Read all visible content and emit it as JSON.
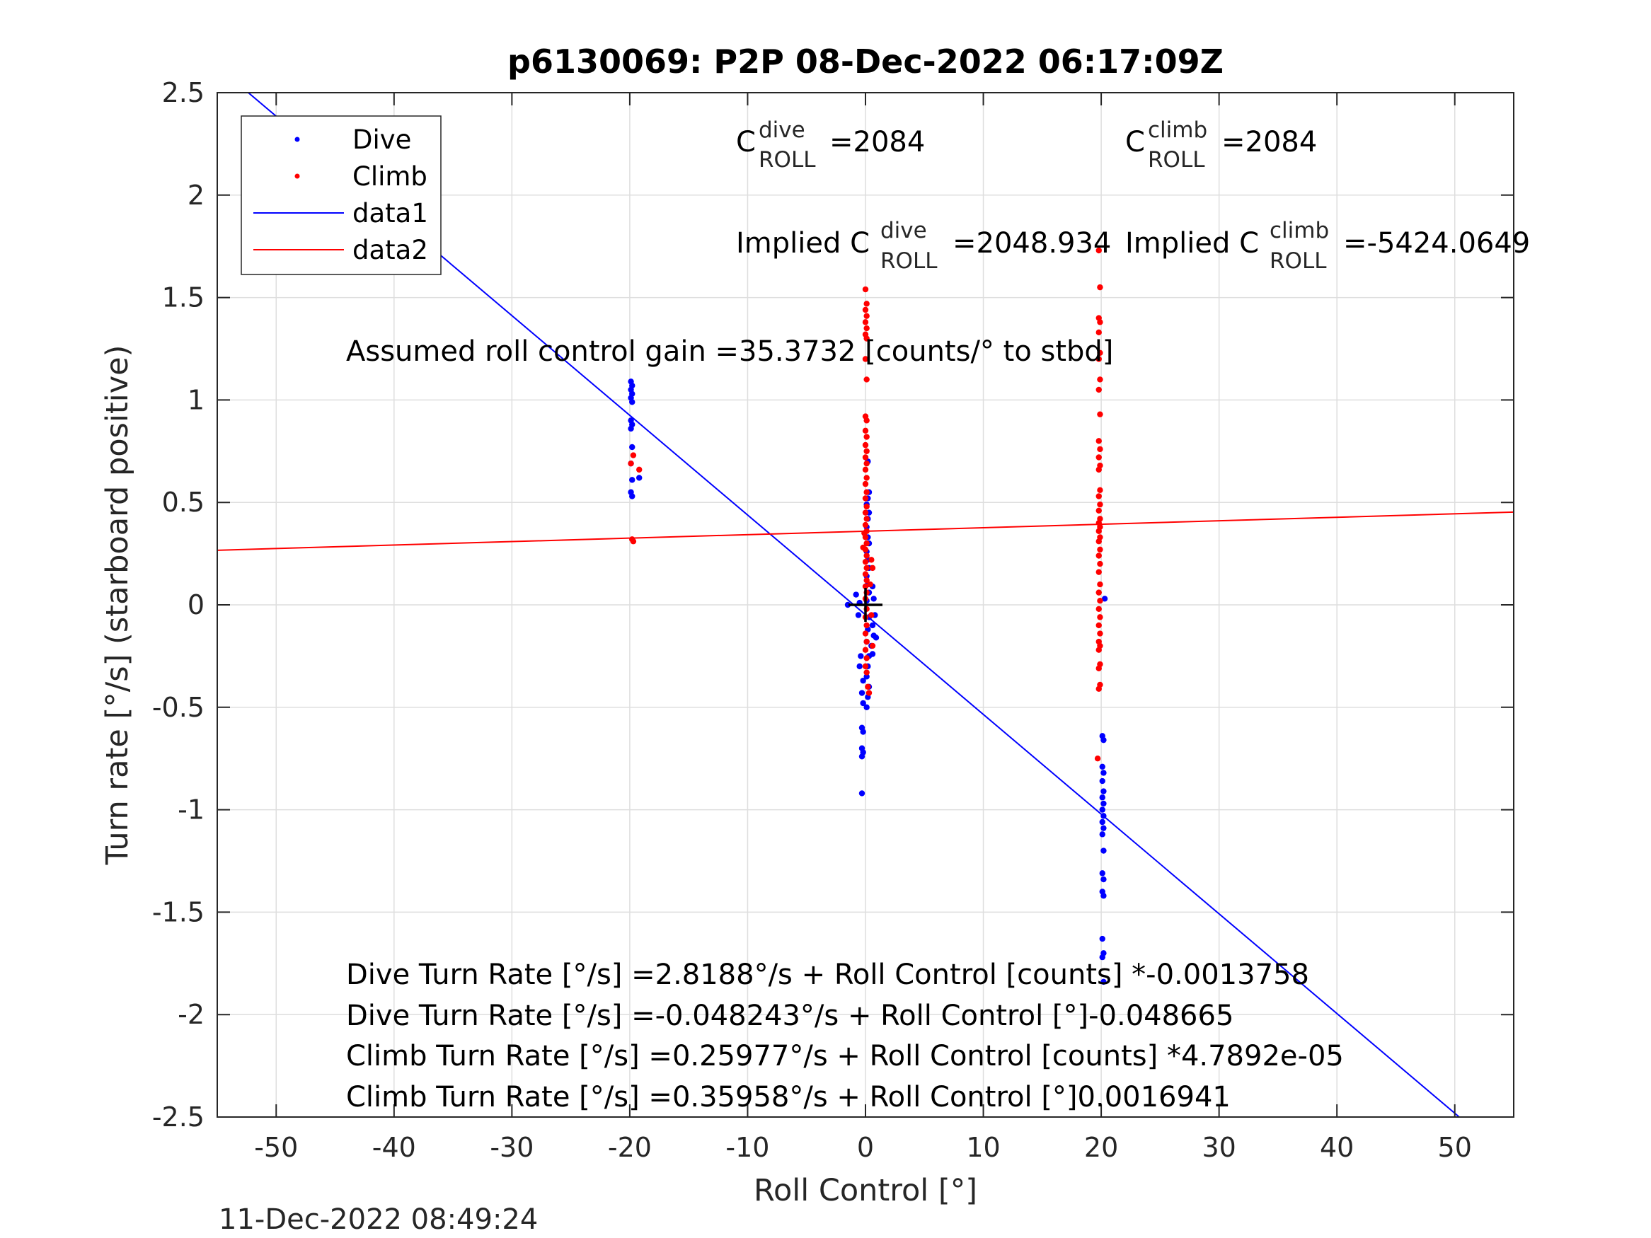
{
  "chart_data": {
    "type": "scatter",
    "title": "p6130069: P2P 08-Dec-2022 06:17:09Z",
    "xlabel": "Roll Control [°]",
    "ylabel": "Turn rate [°/s] (starboard positive)",
    "xlim": [
      -55,
      55
    ],
    "ylim": [
      -2.5,
      2.5
    ],
    "xticks": [
      -50,
      -40,
      -30,
      -20,
      -10,
      0,
      10,
      20,
      30,
      40,
      50
    ],
    "yticks": [
      -2.5,
      -2,
      -1.5,
      -1,
      -0.5,
      0,
      0.5,
      1,
      1.5,
      2,
      2.5
    ],
    "grid": true,
    "legend_position": "top-left",
    "series": [
      {
        "name": "Dive",
        "kind": "scatter",
        "color": "#0000ff",
        "points": [
          [
            -19.9,
            1.09
          ],
          [
            -19.8,
            1.07
          ],
          [
            -19.9,
            1.05
          ],
          [
            -19.8,
            1.03
          ],
          [
            -19.9,
            1.01
          ],
          [
            -19.8,
            0.99
          ],
          [
            -19.9,
            0.9
          ],
          [
            -19.8,
            0.88
          ],
          [
            -19.9,
            0.86
          ],
          [
            -19.8,
            0.77
          ],
          [
            -19.9,
            0.69
          ],
          [
            -19.8,
            0.61
          ],
          [
            -19.9,
            0.55
          ],
          [
            -19.8,
            0.53
          ],
          [
            -19.2,
            0.62
          ],
          [
            -1.5,
            0.0
          ],
          [
            -0.5,
            0.01
          ],
          [
            0.2,
            0.7
          ],
          [
            0.3,
            0.55
          ],
          [
            0.2,
            0.52
          ],
          [
            0.1,
            0.49
          ],
          [
            0.3,
            0.45
          ],
          [
            0.2,
            0.42
          ],
          [
            0.1,
            0.38
          ],
          [
            0.2,
            0.33
          ],
          [
            0.3,
            0.3
          ],
          [
            0.1,
            0.26
          ],
          [
            0.2,
            0.22
          ],
          [
            0.3,
            0.18
          ],
          [
            0.1,
            0.14
          ],
          [
            0.2,
            0.1
          ],
          [
            0.3,
            0.06
          ],
          [
            0.1,
            0.02
          ],
          [
            0.6,
            0.09
          ],
          [
            0.7,
            0.03
          ],
          [
            0.8,
            -0.05
          ],
          [
            0.6,
            -0.1
          ],
          [
            0.7,
            -0.15
          ],
          [
            0.5,
            -0.2
          ],
          [
            0.6,
            -0.24
          ],
          [
            0.9,
            -0.16
          ],
          [
            0.3,
            -0.06
          ],
          [
            0.2,
            -0.12
          ],
          [
            0.1,
            -0.18
          ],
          [
            0.3,
            -0.25
          ],
          [
            0.2,
            -0.3
          ],
          [
            0.1,
            -0.35
          ],
          [
            0.3,
            -0.4
          ],
          [
            0.2,
            -0.45
          ],
          [
            0.1,
            -0.5
          ],
          [
            -0.2,
            -0.37
          ],
          [
            -0.3,
            -0.43
          ],
          [
            -0.2,
            -0.48
          ],
          [
            -0.3,
            -0.6
          ],
          [
            -0.2,
            -0.62
          ],
          [
            -0.3,
            -0.7
          ],
          [
            -0.2,
            -0.72
          ],
          [
            -0.3,
            -0.74
          ],
          [
            -0.3,
            -0.92
          ],
          [
            -0.6,
            -0.05
          ],
          [
            -0.8,
            0.05
          ],
          [
            -0.4,
            -0.25
          ],
          [
            -0.5,
            -0.3
          ],
          [
            20.1,
            -0.64
          ],
          [
            20.2,
            -0.66
          ],
          [
            20.1,
            -0.79
          ],
          [
            20.2,
            -0.82
          ],
          [
            20.1,
            -0.86
          ],
          [
            20.2,
            -0.91
          ],
          [
            20.1,
            -0.94
          ],
          [
            20.2,
            -0.97
          ],
          [
            20.1,
            -1.0
          ],
          [
            20.2,
            -1.03
          ],
          [
            20.1,
            -1.06
          ],
          [
            20.2,
            -1.09
          ],
          [
            20.1,
            -1.12
          ],
          [
            20.2,
            -1.2
          ],
          [
            20.1,
            -1.31
          ],
          [
            20.2,
            -1.34
          ],
          [
            20.1,
            -1.4
          ],
          [
            20.2,
            -1.42
          ],
          [
            20.1,
            -1.63
          ],
          [
            20.2,
            -1.7
          ],
          [
            20.1,
            -1.72
          ],
          [
            20.2,
            -1.84
          ],
          [
            20.3,
            0.03
          ]
        ]
      },
      {
        "name": "Climb",
        "kind": "scatter",
        "color": "#ff0000",
        "points": [
          [
            -19.7,
            0.73
          ],
          [
            -19.9,
            0.69
          ],
          [
            -19.2,
            0.66
          ],
          [
            -19.8,
            0.32
          ],
          [
            -19.7,
            0.31
          ],
          [
            0.0,
            1.54
          ],
          [
            0.1,
            1.47
          ],
          [
            0.0,
            1.44
          ],
          [
            0.1,
            1.41
          ],
          [
            0.0,
            1.38
          ],
          [
            0.1,
            1.35
          ],
          [
            0.0,
            1.32
          ],
          [
            0.1,
            1.3
          ],
          [
            0.0,
            1.2
          ],
          [
            0.1,
            1.1
          ],
          [
            0.0,
            0.92
          ],
          [
            0.1,
            0.9
          ],
          [
            0.0,
            0.85
          ],
          [
            0.1,
            0.82
          ],
          [
            0.0,
            0.78
          ],
          [
            0.1,
            0.75
          ],
          [
            0.0,
            0.72
          ],
          [
            0.1,
            0.69
          ],
          [
            0.0,
            0.66
          ],
          [
            0.1,
            0.62
          ],
          [
            0.0,
            0.59
          ],
          [
            0.1,
            0.55
          ],
          [
            0.0,
            0.52
          ],
          [
            0.1,
            0.48
          ],
          [
            0.0,
            0.45
          ],
          [
            0.1,
            0.42
          ],
          [
            0.0,
            0.39
          ],
          [
            0.1,
            0.36
          ],
          [
            0.0,
            0.33
          ],
          [
            0.1,
            0.3
          ],
          [
            0.0,
            0.27
          ],
          [
            0.1,
            0.24
          ],
          [
            0.0,
            0.21
          ],
          [
            0.1,
            0.18
          ],
          [
            0.0,
            0.15
          ],
          [
            0.1,
            0.12
          ],
          [
            0.0,
            0.09
          ],
          [
            0.1,
            0.06
          ],
          [
            0.0,
            0.03
          ],
          [
            0.1,
            -0.02
          ],
          [
            0.0,
            -0.06
          ],
          [
            0.1,
            -0.1
          ],
          [
            0.0,
            -0.14
          ],
          [
            0.1,
            -0.18
          ],
          [
            0.0,
            -0.22
          ],
          [
            0.1,
            -0.26
          ],
          [
            0.0,
            -0.3
          ],
          [
            0.1,
            -0.33
          ],
          [
            0.2,
            -0.4
          ],
          [
            0.3,
            -0.43
          ],
          [
            0.5,
            0.22
          ],
          [
            0.6,
            0.18
          ],
          [
            0.4,
            0.1
          ],
          [
            0.5,
            -0.05
          ],
          [
            0.6,
            -0.2
          ],
          [
            -0.1,
            0.35
          ],
          [
            -0.2,
            0.28
          ],
          [
            19.8,
            1.73
          ],
          [
            19.9,
            1.55
          ],
          [
            19.8,
            1.4
          ],
          [
            19.9,
            1.38
          ],
          [
            19.8,
            1.33
          ],
          [
            19.9,
            1.23
          ],
          [
            19.8,
            1.2
          ],
          [
            19.9,
            1.1
          ],
          [
            19.8,
            1.05
          ],
          [
            19.9,
            0.93
          ],
          [
            19.8,
            0.8
          ],
          [
            19.9,
            0.76
          ],
          [
            19.8,
            0.72
          ],
          [
            19.9,
            0.68
          ],
          [
            19.8,
            0.66
          ],
          [
            19.9,
            0.56
          ],
          [
            19.8,
            0.53
          ],
          [
            19.9,
            0.49
          ],
          [
            19.8,
            0.46
          ],
          [
            19.9,
            0.42
          ],
          [
            19.8,
            0.4
          ],
          [
            19.9,
            0.38
          ],
          [
            19.8,
            0.36
          ],
          [
            19.9,
            0.33
          ],
          [
            19.8,
            0.31
          ],
          [
            19.9,
            0.27
          ],
          [
            19.8,
            0.24
          ],
          [
            19.9,
            0.2
          ],
          [
            19.8,
            0.16
          ],
          [
            19.9,
            0.1
          ],
          [
            19.8,
            0.06
          ],
          [
            19.9,
            0.02
          ],
          [
            19.8,
            -0.02
          ],
          [
            19.9,
            -0.06
          ],
          [
            19.8,
            -0.1
          ],
          [
            19.9,
            -0.14
          ],
          [
            19.8,
            -0.18
          ],
          [
            19.9,
            -0.2
          ],
          [
            19.8,
            -0.22
          ],
          [
            19.9,
            -0.29
          ],
          [
            19.8,
            -0.31
          ],
          [
            19.9,
            -0.39
          ],
          [
            19.8,
            -0.41
          ],
          [
            19.7,
            -0.75
          ]
        ]
      },
      {
        "name": "data1",
        "kind": "line",
        "color": "#0000ff",
        "intercept": -0.048243,
        "slope": -0.048665
      },
      {
        "name": "data2",
        "kind": "line",
        "color": "#ff0000",
        "intercept": 0.35958,
        "slope": 0.0016941
      }
    ],
    "crosshair": {
      "x": 0,
      "y": 0,
      "color": "#000000"
    },
    "annotations": {
      "c_dive": {
        "base": "C",
        "sup": "dive",
        "sub": "ROLL",
        "value": "=2084"
      },
      "c_climb": {
        "base": "C",
        "sup": "climb",
        "sub": "ROLL",
        "value": "=2084"
      },
      "implied_dive": {
        "prefix": "Implied C",
        "sup": "dive",
        "sub": "ROLL",
        "value": "=2048.934"
      },
      "implied_climb": {
        "prefix": "Implied C",
        "sup": "climb",
        "sub": "ROLL",
        "value": "=-5424.0649"
      },
      "gain": "Assumed roll control gain =35.3732 [counts/° to stbd]",
      "eq1": "Dive Turn Rate [°/s] =2.8188°/s + Roll Control [counts] *-0.0013758",
      "eq2": "Dive Turn Rate [°/s] =-0.048243°/s + Roll Control [°]-0.048665",
      "eq3": "Climb Turn Rate [°/s] =0.25977°/s + Roll Control [counts] *4.7892e-05",
      "eq4": "Climb Turn Rate [°/s] =0.35958°/s + Roll Control [°]0.0016941"
    },
    "timestamp": "11-Dec-2022 08:49:24"
  }
}
